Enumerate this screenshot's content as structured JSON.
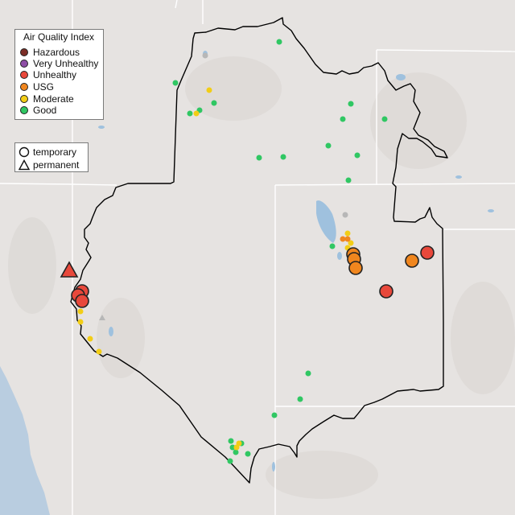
{
  "legend": {
    "title": "Air Quality Index",
    "categories": [
      {
        "label": "Hazardous",
        "color": "#7b2d26"
      },
      {
        "label": "Very Unhealthy",
        "color": "#8e4ea6"
      },
      {
        "label": "Unhealthy",
        "color": "#e8483b"
      },
      {
        "label": "USG",
        "color": "#f0861e"
      },
      {
        "label": "Moderate",
        "color": "#f2cd16"
      },
      {
        "label": "Good",
        "color": "#30c763"
      }
    ],
    "shapes": [
      {
        "label": "temporary",
        "icon": "circle-outline-icon"
      },
      {
        "label": "permanent",
        "icon": "triangle-outline-icon"
      }
    ]
  },
  "colors": {
    "land": "#e6e3e1",
    "ocean": "#b9cde0",
    "water": "#9fc1de",
    "border": "#000000",
    "state_line": "#ffffff"
  }
}
